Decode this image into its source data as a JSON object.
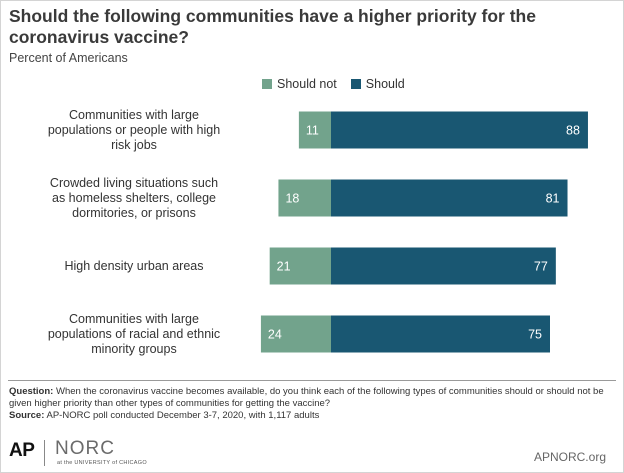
{
  "title": "Should the following communities have a higher priority for the coronavirus vaccine?",
  "subtitle": "Percent of Americans",
  "colors": {
    "should_not": "#72a38c",
    "should": "#195772"
  },
  "chart_data": {
    "type": "bar",
    "orientation": "horizontal",
    "stacked": "diverging",
    "categories": [
      "Communities with large populations or people with high risk jobs",
      "Crowded living situations such as homeless shelters, college dormitories, or prisons",
      "High density urban areas",
      "Communities with large populations of racial and ethnic minority groups"
    ],
    "category_lines": [
      [
        "Communities with large",
        "populations or people with high",
        "risk jobs"
      ],
      [
        "Crowded living situations such",
        "as homeless shelters, college",
        "dormitories, or prisons"
      ],
      [
        "High density urban areas"
      ],
      [
        "Communities with large",
        "populations of racial and ethnic",
        "minority groups"
      ]
    ],
    "series": [
      {
        "name": "Should not",
        "values": [
          11,
          18,
          21,
          24
        ]
      },
      {
        "name": "Should",
        "values": [
          88,
          81,
          77,
          75
        ]
      }
    ],
    "legend_position": "top",
    "grid": false
  },
  "notes": {
    "question_label": "Question:",
    "question_text": "When the coronavirus vaccine becomes available, do you think each of the following types of communities should or should not be given higher priority than other types of communities for getting the vaccine?",
    "source_label": "Source:",
    "source_text": "AP-NORC poll conducted December  3-7, 2020, with 1,117 adults"
  },
  "footer": {
    "ap_logo": "AP",
    "norc_logo": "NORC",
    "norc_tagline": "at the UNIVERSITY of CHICAGO",
    "url": "APNORC.org"
  }
}
